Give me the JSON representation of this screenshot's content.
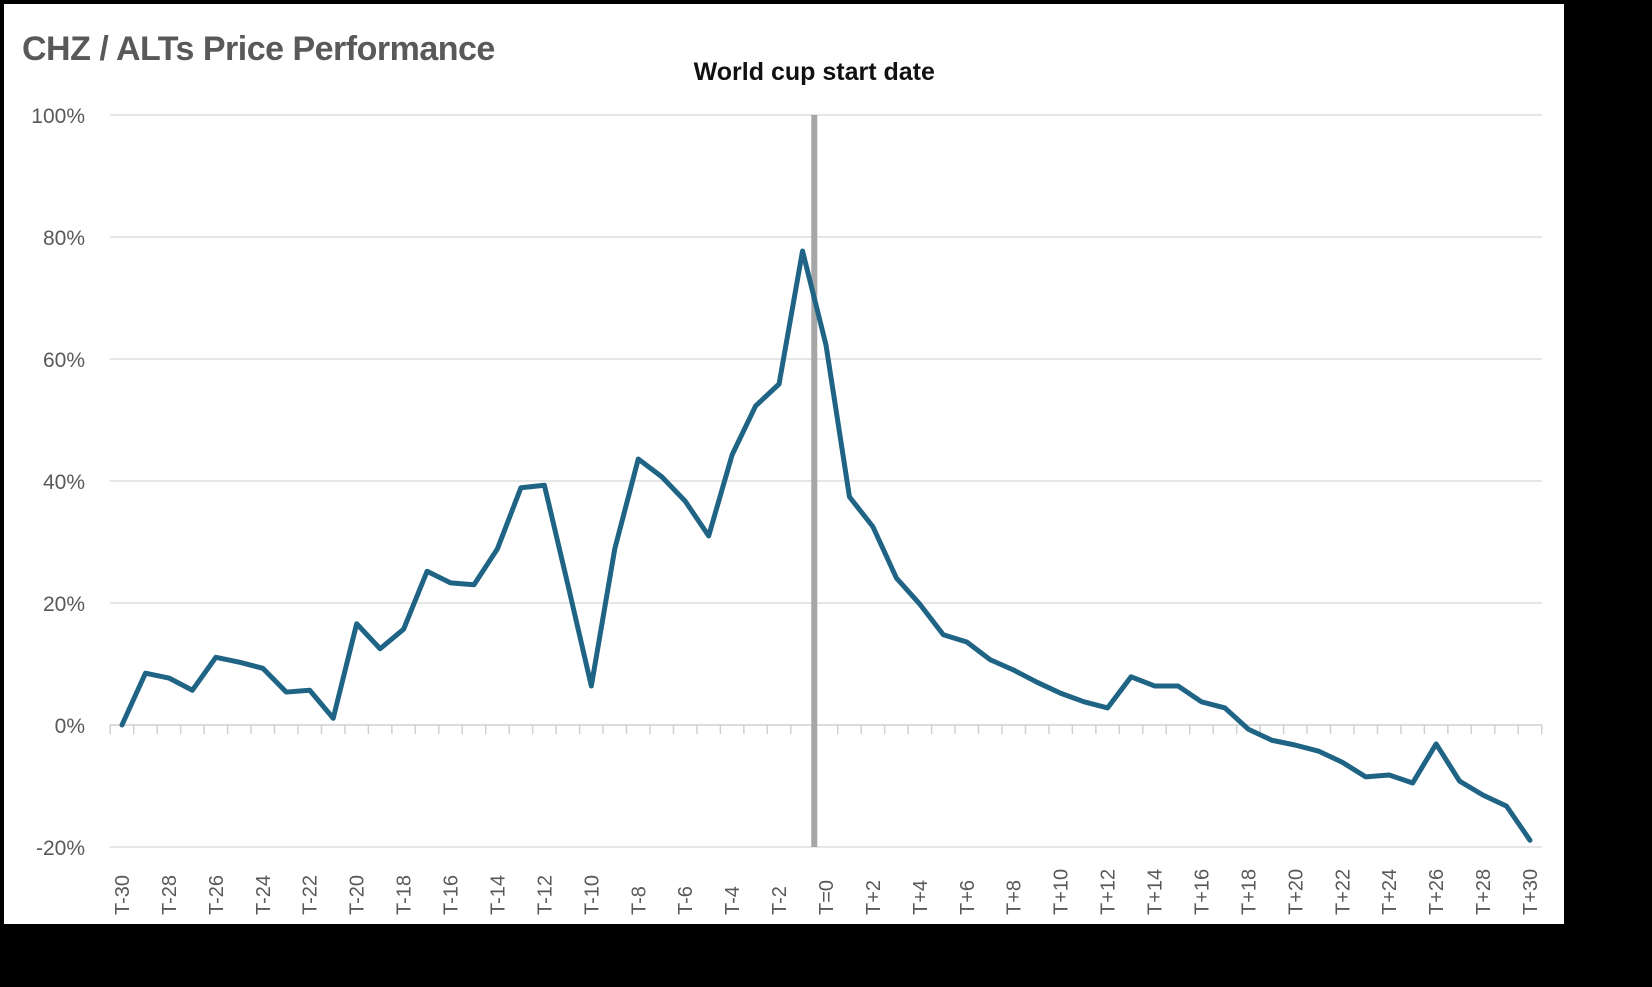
{
  "chart_data": {
    "type": "line",
    "title": "CHZ / ALTs Price Performance",
    "xlabel": "",
    "ylabel": "",
    "ylim": [
      -20,
      100
    ],
    "yticks": [
      "100%",
      "80%",
      "60%",
      "40%",
      "20%",
      "0%",
      "-20%"
    ],
    "ytick_values": [
      100,
      80,
      60,
      40,
      20,
      0,
      -20
    ],
    "grid": true,
    "legend": "none",
    "categories": [
      "T-30",
      "T-29",
      "T-28",
      "T-27",
      "T-26",
      "T-25",
      "T-24",
      "T-23",
      "T-22",
      "T-21",
      "T-20",
      "T-19",
      "T-18",
      "T-17",
      "T-16",
      "T-15",
      "T-14",
      "T-13",
      "T-12",
      "T-11",
      "T-10",
      "T-9",
      "T-8",
      "T-7",
      "T-6",
      "T-5",
      "T-4",
      "T-3",
      "T-2",
      "T-1",
      "T=0",
      "T+1",
      "T+2",
      "T+3",
      "T+4",
      "T+5",
      "T+6",
      "T+7",
      "T+8",
      "T+9",
      "T+10",
      "T+11",
      "T+12",
      "T+13",
      "T+14",
      "T+15",
      "T+16",
      "T+17",
      "T+18",
      "T+19",
      "T+20",
      "T+21",
      "T+22",
      "T+23",
      "T+24",
      "T+25",
      "T+26",
      "T+27",
      "T+28",
      "T+29",
      "T+30"
    ],
    "series": [
      {
        "name": "CHZ / ALTs",
        "color": "#1f6485",
        "values": [
          0,
          8.5,
          7.7,
          5.7,
          11.1,
          10.3,
          9.3,
          5.4,
          5.7,
          1.1,
          16.6,
          12.5,
          15.7,
          25.2,
          23.3,
          23.0,
          28.9,
          38.9,
          39.3,
          23.0,
          6.4,
          28.9,
          43.6,
          40.7,
          36.7,
          31.0,
          44.3,
          52.3,
          55.9,
          77.7,
          62.3,
          37.4,
          32.5,
          24.1,
          19.8,
          14.8,
          13.6,
          10.7,
          9.0,
          7.0,
          5.2,
          3.8,
          2.8,
          7.9,
          6.4,
          6.4,
          3.8,
          2.8,
          -0.7,
          -2.5,
          -3.3,
          -4.3,
          -6.1,
          -8.5,
          -8.2,
          -9.5,
          -3.1,
          -9.2,
          -11.5,
          -13.3,
          -18.9
        ]
      }
    ],
    "annotations": [
      {
        "text": "World cup start date",
        "between": [
          "T-1",
          "T=0"
        ],
        "color": "#a6a6a6"
      }
    ]
  }
}
